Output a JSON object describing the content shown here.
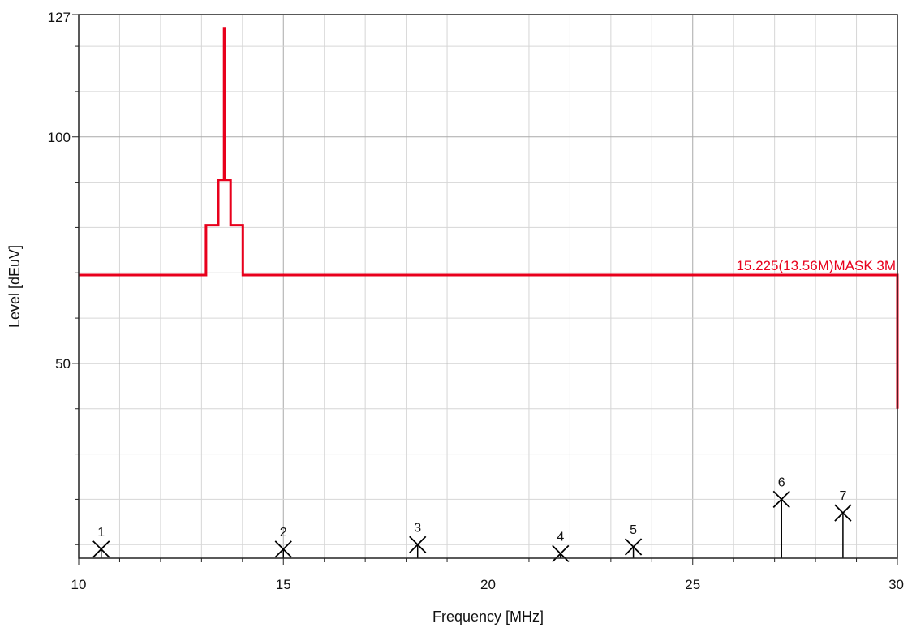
{
  "chart_data": {
    "type": "line",
    "title": "",
    "xlabel": "Frequency [MHz]",
    "ylabel": "Level [dEuV]",
    "xlim": [
      10,
      30
    ],
    "ylim": [
      7,
      127
    ],
    "grid": true,
    "x_ticks": [
      "10",
      "15",
      "20",
      "25",
      "30"
    ],
    "y_ticks": [
      "50",
      "100",
      "127"
    ],
    "colors": {
      "limit": "#e8001c",
      "marker": "#000000",
      "grid_major": "#a9a9a9",
      "grid_minor": "#d6d6d6"
    },
    "limit_line": {
      "name": "15.225(13.56M)MASK 3M",
      "x": [
        10,
        13.11,
        13.11,
        13.41,
        13.41,
        13.553,
        13.553,
        13.567,
        13.567,
        13.71,
        13.71,
        14.01,
        14.01,
        30,
        30
      ],
      "y": [
        69.5,
        69.5,
        80.5,
        80.5,
        90.5,
        90.5,
        124,
        124,
        90.5,
        90.5,
        80.5,
        80.5,
        69.5,
        69.5,
        40
      ]
    },
    "markers": [
      {
        "label": "1",
        "x": 10.55,
        "y": 9.0
      },
      {
        "label": "2",
        "x": 15.0,
        "y": 9.0
      },
      {
        "label": "3",
        "x": 18.28,
        "y": 10.0
      },
      {
        "label": "4",
        "x": 21.77,
        "y": 8.0
      },
      {
        "label": "5",
        "x": 23.55,
        "y": 9.5
      },
      {
        "label": "6",
        "x": 27.17,
        "y": 20.0
      },
      {
        "label": "7",
        "x": 28.67,
        "y": 17.0
      }
    ]
  }
}
